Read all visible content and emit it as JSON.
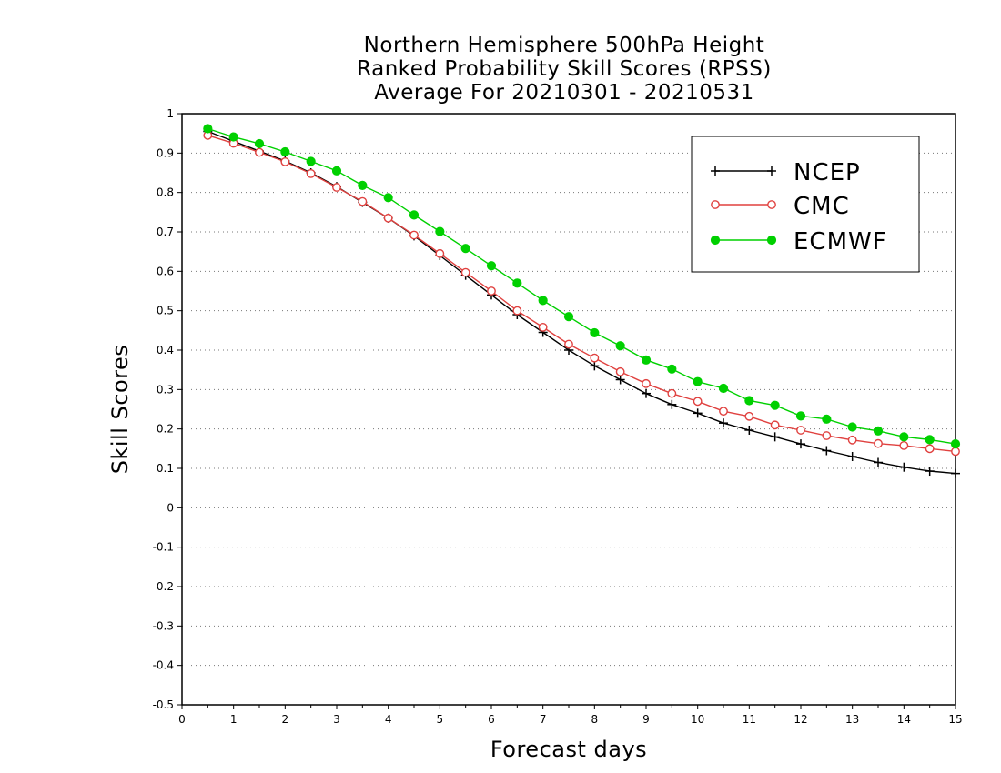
{
  "title_lines": [
    "Northern Hemisphere 500hPa Height",
    "Ranked Probability Skill Scores (RPSS)",
    "Average For 20210301 - 20210531"
  ],
  "chart_data": {
    "type": "line",
    "title": "Northern Hemisphere 500hPa Height Ranked Probability Skill Scores (RPSS) Average For 20210301 - 20210531",
    "xlabel": "Forecast days",
    "ylabel": "Skill Scores",
    "xlim": [
      0,
      15
    ],
    "ylim": [
      -0.5,
      1
    ],
    "xticks": [
      "0",
      "1",
      "2",
      "3",
      "4",
      "5",
      "6",
      "7",
      "8",
      "9",
      "10",
      "11",
      "12",
      "13",
      "14",
      "15"
    ],
    "yticks": [
      "1",
      "0.9",
      "0.8",
      "0.7",
      "0.6",
      "0.5",
      "0.4",
      "0.3",
      "0.2",
      "0.1",
      "0",
      "-0.1",
      "-0.2",
      "-0.3",
      "-0.4",
      "-0.5"
    ],
    "grid": "horizontal dotted",
    "legend_position": "top-right",
    "x": [
      0.5,
      1,
      1.5,
      2,
      2.5,
      3,
      3.5,
      4,
      4.5,
      5,
      5.5,
      6,
      6.5,
      7,
      7.5,
      8,
      8.5,
      9,
      9.5,
      10,
      10.5,
      11,
      11.5,
      12,
      12.5,
      13,
      13.5,
      14,
      14.5,
      15
    ],
    "series": [
      {
        "name": "NCEP",
        "color": "#000000",
        "marker": "plus",
        "values": [
          0.955,
          0.93,
          0.905,
          0.88,
          0.85,
          0.815,
          0.775,
          0.735,
          0.69,
          0.64,
          0.59,
          0.54,
          0.49,
          0.445,
          0.4,
          0.36,
          0.325,
          0.29,
          0.262,
          0.24,
          0.215,
          0.197,
          0.18,
          0.162,
          0.145,
          0.13,
          0.115,
          0.103,
          0.093,
          0.087
        ]
      },
      {
        "name": "CMC",
        "color": "#e0413f",
        "marker": "open-circle",
        "values": [
          0.945,
          0.925,
          0.902,
          0.878,
          0.848,
          0.813,
          0.777,
          0.735,
          0.692,
          0.645,
          0.597,
          0.55,
          0.5,
          0.458,
          0.415,
          0.38,
          0.345,
          0.315,
          0.29,
          0.27,
          0.245,
          0.232,
          0.21,
          0.197,
          0.183,
          0.172,
          0.163,
          0.158,
          0.15,
          0.143
        ]
      },
      {
        "name": "ECMWF",
        "color": "#00d000",
        "marker": "filled-circle",
        "values": [
          0.962,
          0.941,
          0.924,
          0.903,
          0.879,
          0.855,
          0.818,
          0.787,
          0.743,
          0.701,
          0.658,
          0.614,
          0.57,
          0.526,
          0.485,
          0.444,
          0.411,
          0.375,
          0.352,
          0.32,
          0.303,
          0.272,
          0.26,
          0.233,
          0.225,
          0.205,
          0.195,
          0.18,
          0.173,
          0.162
        ]
      }
    ]
  }
}
